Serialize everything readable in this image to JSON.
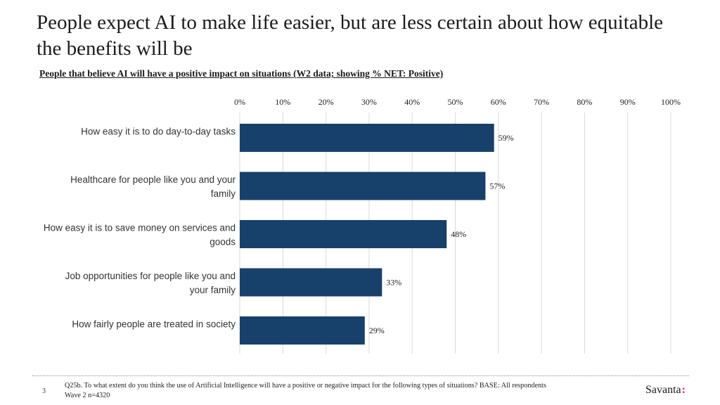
{
  "title": "People expect AI to make life easier, but are less certain about how equitable the benefits will be",
  "subtitle": "People that believe AI will have a positive impact on situations (W2 data; showing % NET: Positive)",
  "chart_data": {
    "type": "bar",
    "orientation": "horizontal",
    "title": "People that believe AI will have a positive impact on situations (W2 data; showing % NET: Positive)",
    "categories": [
      [
        "How easy it is to do day-to-day tasks"
      ],
      [
        "Healthcare for people like you and your",
        "family"
      ],
      [
        "How easy it is to save money on services and",
        "goods"
      ],
      [
        "Job opportunities for people like you and",
        "your family"
      ],
      [
        "How fairly people are treated in society"
      ]
    ],
    "values": [
      59,
      57,
      48,
      33,
      29
    ],
    "data_labels": [
      "59%",
      "57%",
      "48%",
      "33%",
      "29%"
    ],
    "xlim": [
      0,
      100
    ],
    "ticks": [
      0,
      10,
      20,
      30,
      40,
      50,
      60,
      70,
      80,
      90,
      100
    ],
    "tick_labels": [
      "0%",
      "10%",
      "20%",
      "30%",
      "40%",
      "50%",
      "60%",
      "70%",
      "80%",
      "90%",
      "100%"
    ],
    "axis_position": "top",
    "grid": true,
    "bar_color": "#17406a"
  },
  "footer": {
    "page_number": "3",
    "note_line1": "Q25b. To what extent do you think the use of Artificial Intelligence will have a positive or negative impact for the following types of situations? BASE: All respondents",
    "note_line2": "Wave 2 n=4320",
    "logo": "Savanta",
    "logo_mark": ":"
  }
}
